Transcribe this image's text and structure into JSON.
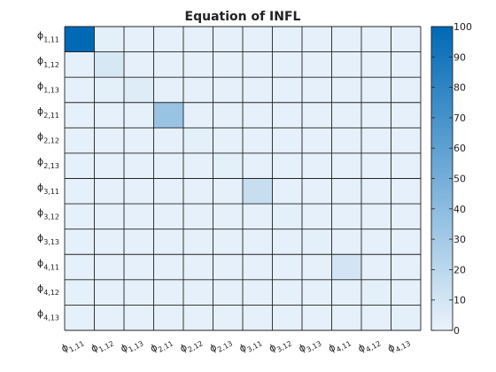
{
  "chart_data": {
    "type": "heatmap",
    "title": "Equation of INFL",
    "rows": [
      {
        "sym": "ϕ",
        "sub": "1,11"
      },
      {
        "sym": "ϕ",
        "sub": "1,12"
      },
      {
        "sym": "ϕ",
        "sub": "1,13"
      },
      {
        "sym": "ϕ",
        "sub": "2,11"
      },
      {
        "sym": "ϕ",
        "sub": "2,12"
      },
      {
        "sym": "ϕ",
        "sub": "2,13"
      },
      {
        "sym": "ϕ",
        "sub": "3,11"
      },
      {
        "sym": "ϕ",
        "sub": "3,12"
      },
      {
        "sym": "ϕ",
        "sub": "3,13"
      },
      {
        "sym": "ϕ",
        "sub": "4,11"
      },
      {
        "sym": "ϕ",
        "sub": "4,12"
      },
      {
        "sym": "ϕ",
        "sub": "4,13"
      }
    ],
    "cols": [
      {
        "sym": "ϕ",
        "sub": "1,11"
      },
      {
        "sym": "ϕ",
        "sub": "1,12"
      },
      {
        "sym": "ϕ",
        "sub": "1,13"
      },
      {
        "sym": "ϕ",
        "sub": "2,11"
      },
      {
        "sym": "ϕ",
        "sub": "2,12"
      },
      {
        "sym": "ϕ",
        "sub": "2,13"
      },
      {
        "sym": "ϕ",
        "sub": "3,11"
      },
      {
        "sym": "ϕ",
        "sub": "3,12"
      },
      {
        "sym": "ϕ",
        "sub": "3,13"
      },
      {
        "sym": "ϕ",
        "sub": "4,11"
      },
      {
        "sym": "ϕ",
        "sub": "4,12"
      },
      {
        "sym": "ϕ",
        "sub": "4,13"
      }
    ],
    "values": [
      [
        100,
        3,
        2,
        2,
        2,
        2,
        2,
        2,
        2,
        2,
        2,
        2
      ],
      [
        2,
        8,
        2,
        2,
        2,
        2,
        2,
        2,
        2,
        2,
        2,
        2
      ],
      [
        2,
        3,
        5,
        2,
        2,
        2,
        2,
        2,
        2,
        2,
        2,
        2
      ],
      [
        2,
        2,
        2,
        35,
        2,
        2,
        2,
        2,
        2,
        2,
        2,
        2
      ],
      [
        2,
        2,
        2,
        2,
        3,
        2,
        2,
        2,
        2,
        2,
        2,
        2
      ],
      [
        2,
        2,
        2,
        2,
        2,
        3,
        2,
        2,
        2,
        2,
        2,
        2
      ],
      [
        2,
        2,
        2,
        2,
        2,
        2,
        15,
        2,
        2,
        2,
        2,
        2
      ],
      [
        2,
        2,
        2,
        2,
        2,
        2,
        2,
        3,
        2,
        2,
        2,
        2
      ],
      [
        2,
        2,
        2,
        2,
        2,
        2,
        2,
        2,
        3,
        2,
        2,
        2
      ],
      [
        2,
        2,
        2,
        2,
        2,
        2,
        2,
        2,
        2,
        10,
        2,
        2
      ],
      [
        2,
        2,
        2,
        2,
        2,
        2,
        2,
        2,
        2,
        2,
        3,
        2
      ],
      [
        2,
        2,
        2,
        2,
        2,
        2,
        2,
        2,
        2,
        2,
        2,
        3
      ]
    ],
    "colorbar": {
      "range": [
        0,
        100
      ],
      "ticks": [
        0,
        10,
        20,
        30,
        40,
        50,
        60,
        70,
        80,
        90,
        100
      ],
      "color_low": "#eaf3fb",
      "color_high": "#0069b6"
    },
    "grid": true
  }
}
